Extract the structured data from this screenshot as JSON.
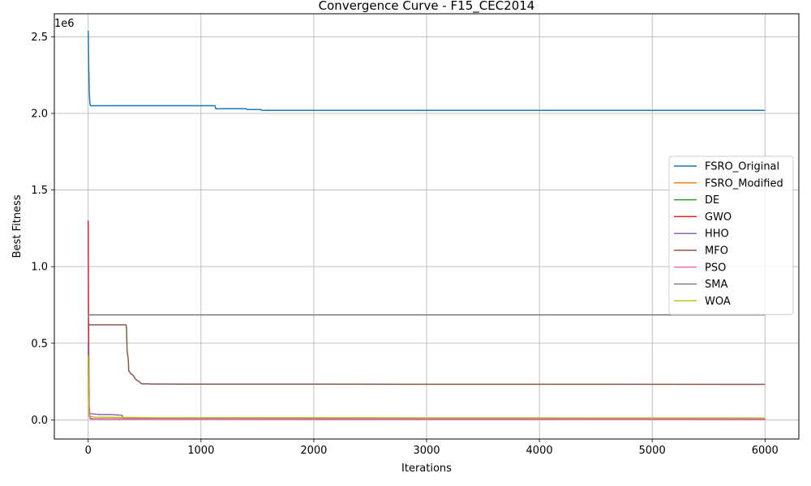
{
  "chart_data": {
    "type": "line",
    "title": "Convergence Curve - F15_CEC2014",
    "xlabel": "Iterations",
    "ylabel": "Best Fitness",
    "y_multiplier_label": "1e6",
    "xlim": [
      -300,
      6300
    ],
    "ylim": [
      -125000,
      2650000
    ],
    "xticks": [
      0,
      1000,
      2000,
      3000,
      4000,
      5000,
      6000
    ],
    "xtick_labels": [
      "0",
      "1000",
      "2000",
      "3000",
      "4000",
      "5000",
      "6000"
    ],
    "yticks": [
      0,
      500000,
      1000000,
      1500000,
      2000000,
      2500000
    ],
    "ytick_labels": [
      "0.0",
      "0.5",
      "1.0",
      "1.5",
      "2.0",
      "2.5"
    ],
    "grid": true,
    "legend_position": "center-right",
    "series": [
      {
        "name": "FSRO_Original",
        "color": "#1f77b4",
        "x": [
          0,
          5,
          10,
          15,
          20,
          1125,
          1130,
          1400,
          1410,
          1530,
          1540,
          6000
        ],
        "y": [
          2540000,
          2300000,
          2130000,
          2070000,
          2050000,
          2050000,
          2030000,
          2030000,
          2025000,
          2025000,
          2020000,
          2020000
        ]
      },
      {
        "name": "FSRO_Modified",
        "color": "#ff7f0e",
        "x": [
          0,
          5,
          15,
          30,
          6000
        ],
        "y": [
          400000,
          60000,
          10000,
          3000,
          2000
        ]
      },
      {
        "name": "DE",
        "color": "#2ca02c",
        "x": [
          0,
          5,
          15,
          40,
          6000
        ],
        "y": [
          350000,
          50000,
          12000,
          5000,
          3000
        ]
      },
      {
        "name": "GWO",
        "color": "#d62728",
        "x": [
          0,
          3,
          8,
          15,
          30,
          6000
        ],
        "y": [
          1300000,
          700000,
          100000,
          15000,
          5000,
          3000
        ]
      },
      {
        "name": "HHO",
        "color": "#9467bd",
        "x": [
          0,
          4,
          10,
          20,
          100,
          200,
          300,
          310,
          600,
          6000
        ],
        "y": [
          500000,
          120000,
          50000,
          40000,
          35000,
          35000,
          30000,
          15000,
          12000,
          10000
        ]
      },
      {
        "name": "MFO",
        "color": "#8c564b",
        "x": [
          0,
          8,
          335,
          340,
          345,
          355,
          360,
          380,
          400,
          420,
          450,
          470,
          480,
          600,
          1000,
          6000
        ],
        "y": [
          600000,
          620000,
          620000,
          600000,
          450000,
          400000,
          320000,
          300000,
          290000,
          265000,
          250000,
          238000,
          235000,
          234000,
          233000,
          232000
        ]
      },
      {
        "name": "PSO",
        "color": "#e377c2",
        "x": [
          0,
          5,
          15,
          30,
          6000
        ],
        "y": [
          300000,
          40000,
          8000,
          2500,
          1500
        ]
      },
      {
        "name": "SMA",
        "color": "#7f7f7f",
        "x": [
          0,
          4,
          10,
          6000
        ],
        "y": [
          650000,
          685000,
          685000,
          685000
        ]
      },
      {
        "name": "WOA",
        "color": "#bcbd22",
        "x": [
          0,
          5,
          15,
          50,
          300,
          600,
          6000
        ],
        "y": [
          420000,
          60000,
          25000,
          18000,
          16000,
          14000,
          12000
        ]
      }
    ]
  }
}
